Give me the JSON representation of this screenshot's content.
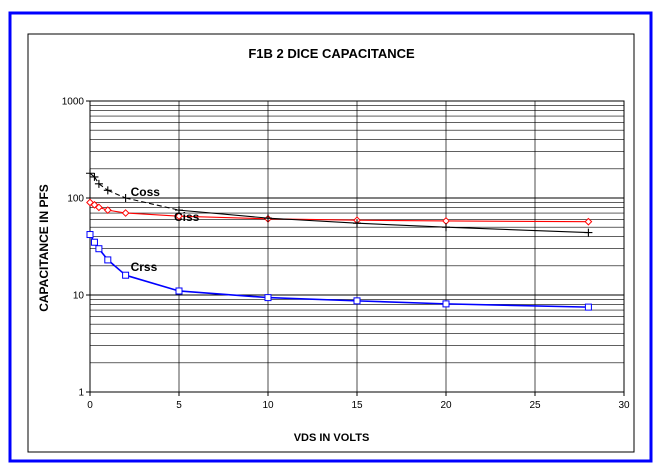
{
  "chart_data": {
    "type": "line",
    "title": "F1B 2 DICE  CAPACITANCE",
    "xlabel": "VDS IN VOLTS",
    "ylabel": "CAPACITANCE IN PFS",
    "xlim": [
      0,
      30
    ],
    "ylim": [
      1,
      1000
    ],
    "yscale": "log",
    "grid": true,
    "x_ticks": [
      "0",
      "5",
      "10",
      "15",
      "20",
      "25",
      "30"
    ],
    "y_ticks": [
      "1",
      "10",
      "100",
      "1000"
    ],
    "series": [
      {
        "name": "Ciss",
        "color": "#ff0000",
        "marker": "diamond",
        "x": [
          0,
          0.25,
          0.5,
          1,
          2,
          5,
          10,
          15,
          20,
          28
        ],
        "y": [
          90,
          85,
          80,
          75,
          70,
          65,
          61,
          59,
          58,
          57
        ]
      },
      {
        "name": "Coss",
        "color": "#000000",
        "marker": "plus",
        "dashed_segment_until_x": 5,
        "x": [
          0,
          0.25,
          0.5,
          1,
          2,
          5,
          10,
          15,
          20,
          28
        ],
        "y": [
          180,
          165,
          140,
          120,
          100,
          75,
          62,
          55,
          50,
          44
        ]
      },
      {
        "name": "Crss",
        "color": "#0000ff",
        "marker": "square",
        "x": [
          0,
          0.25,
          0.5,
          1,
          2,
          5,
          10,
          15,
          20,
          28
        ],
        "y": [
          42,
          35,
          30,
          23,
          16,
          11,
          9.4,
          8.7,
          8.1,
          7.5
        ]
      }
    ]
  }
}
